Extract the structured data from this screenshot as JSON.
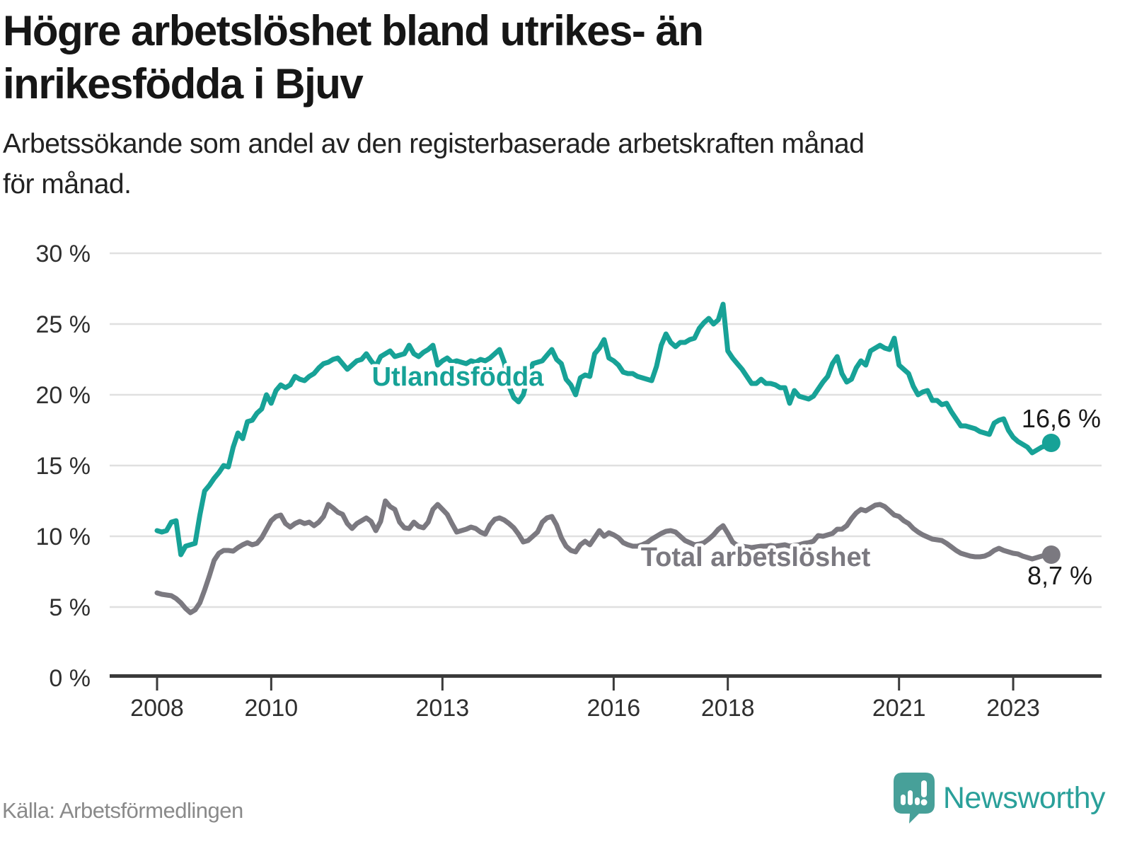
{
  "header": {
    "title_lines": [
      "Högre arbetslöshet bland utrikes- än",
      "inrikesfödda i Bjuv"
    ],
    "subtitle_lines": [
      "Arbetssökande som andel av den registerbaserade arbetskraften månad",
      "för månad."
    ]
  },
  "footer": {
    "source": "Källa: Arbetsförmedlingen",
    "brand": "Newsworthy"
  },
  "colors": {
    "foreign_born_line": "#17a297",
    "total_line": "#7b7980",
    "gridline": "#e0e0e0",
    "axis": "#3a3a3a",
    "axis_text": "#2f2f2f",
    "value_text": "#1a1a1a",
    "source_text": "#8a8a8a",
    "brand_teal": "#2aa09a",
    "logo_bubble": "#47a099"
  },
  "chart_data": {
    "type": "line",
    "title": "Högre arbetslöshet bland utrikes- än inrikesfödda i Bjuv",
    "subtitle": "Arbetssökande som andel av den registerbaserade arbetskraften månad för månad.",
    "xlabel": "",
    "ylabel": "",
    "ylim": [
      0,
      30
    ],
    "grid": "horizontal",
    "legend": "inline-labels",
    "x_unit": "month",
    "x_start": "2008-01",
    "x_end": "2023-09",
    "x_ticks": [
      {
        "year": 2008,
        "label": "2008"
      },
      {
        "year": 2010,
        "label": "2010"
      },
      {
        "year": 2013,
        "label": "2013"
      },
      {
        "year": 2016,
        "label": "2016"
      },
      {
        "year": 2018,
        "label": "2018"
      },
      {
        "year": 2021,
        "label": "2021"
      },
      {
        "year": 2023,
        "label": "2023"
      }
    ],
    "y_ticks": [
      {
        "value": 0,
        "label": "0 %"
      },
      {
        "value": 5,
        "label": "5 %"
      },
      {
        "value": 10,
        "label": "10 %"
      },
      {
        "value": 15,
        "label": "15 %"
      },
      {
        "value": 20,
        "label": "20 %"
      },
      {
        "value": 25,
        "label": "25 %"
      },
      {
        "value": 30,
        "label": "30 %"
      }
    ],
    "series": [
      {
        "name": "Utlandsfödda",
        "color": "#17a297",
        "end_label": "16,6 %",
        "end_value": 16.6,
        "values": [
          10.4,
          10.3,
          10.4,
          11.0,
          11.1,
          8.7,
          9.3,
          9.4,
          9.5,
          11.5,
          13.2,
          13.6,
          14.1,
          14.5,
          15.0,
          14.9,
          16.3,
          17.3,
          16.9,
          18.1,
          18.2,
          18.7,
          19.0,
          20.0,
          19.4,
          20.3,
          20.7,
          20.5,
          20.7,
          21.3,
          21.1,
          21.0,
          21.3,
          21.5,
          21.9,
          22.2,
          22.3,
          22.5,
          22.6,
          22.2,
          21.8,
          22.1,
          22.4,
          22.5,
          22.9,
          22.4,
          22.0,
          22.7,
          22.9,
          23.1,
          22.7,
          22.8,
          22.9,
          23.5,
          22.9,
          22.7,
          23.0,
          23.2,
          23.5,
          22.1,
          22.4,
          22.6,
          22.3,
          22.4,
          22.3,
          22.2,
          22.4,
          22.3,
          22.5,
          22.4,
          22.6,
          22.9,
          23.2,
          22.3,
          20.6,
          19.8,
          19.5,
          20.0,
          21.3,
          22.2,
          22.3,
          22.4,
          22.8,
          23.2,
          22.5,
          22.2,
          21.1,
          20.7,
          20.0,
          21.2,
          21.4,
          21.3,
          22.9,
          23.3,
          23.9,
          22.6,
          22.4,
          22.1,
          21.6,
          21.5,
          21.5,
          21.3,
          21.2,
          21.1,
          21.0,
          22.0,
          23.5,
          24.3,
          23.7,
          23.4,
          23.7,
          23.7,
          23.9,
          24.0,
          24.7,
          25.1,
          25.4,
          25.0,
          25.3,
          26.4,
          23.1,
          22.6,
          22.2,
          21.8,
          21.3,
          20.8,
          20.8,
          21.1,
          20.8,
          20.8,
          20.7,
          20.5,
          20.5,
          19.4,
          20.3,
          19.9,
          19.8,
          19.7,
          19.9,
          20.4,
          20.9,
          21.3,
          22.2,
          22.7,
          21.5,
          20.9,
          21.1,
          21.9,
          22.4,
          22.1,
          23.1,
          23.3,
          23.5,
          23.3,
          23.2,
          24.0,
          22.1,
          21.8,
          21.5,
          20.6,
          20.0,
          20.2,
          20.3,
          19.6,
          19.6,
          19.3,
          19.4,
          18.8,
          18.3,
          17.8,
          17.8,
          17.7,
          17.6,
          17.4,
          17.3,
          17.2,
          18.0,
          18.2,
          18.3,
          17.5,
          17.0,
          16.7,
          16.5,
          16.3,
          15.9,
          16.1,
          16.3,
          16.4,
          16.6
        ]
      },
      {
        "name": "Total arbetslöshet",
        "color": "#7b7980",
        "end_label": "8,7 %",
        "end_value": 8.7,
        "values": [
          6.0,
          5.9,
          5.85,
          5.8,
          5.6,
          5.3,
          4.9,
          4.6,
          4.8,
          5.3,
          6.2,
          7.2,
          8.3,
          8.8,
          9.0,
          9.0,
          8.95,
          9.2,
          9.4,
          9.55,
          9.4,
          9.5,
          9.9,
          10.5,
          11.1,
          11.4,
          11.5,
          10.9,
          10.65,
          10.9,
          11.05,
          10.9,
          11.0,
          10.75,
          11.0,
          11.4,
          12.25,
          12.0,
          11.7,
          11.55,
          10.9,
          10.55,
          10.9,
          11.1,
          11.3,
          11.05,
          10.4,
          11.05,
          12.5,
          12.1,
          11.9,
          11.0,
          10.6,
          10.55,
          11.0,
          10.7,
          10.6,
          11.0,
          11.9,
          12.25,
          11.9,
          11.55,
          10.9,
          10.3,
          10.4,
          10.5,
          10.65,
          10.55,
          10.3,
          10.15,
          10.8,
          11.2,
          11.3,
          11.15,
          10.9,
          10.6,
          10.15,
          9.6,
          9.7,
          10.0,
          10.3,
          11.0,
          11.3,
          11.4,
          10.8,
          9.9,
          9.3,
          9.0,
          8.9,
          9.4,
          9.65,
          9.4,
          9.9,
          10.4,
          10.0,
          10.25,
          10.1,
          9.9,
          9.55,
          9.4,
          9.3,
          9.3,
          9.4,
          9.55,
          9.8,
          10.0,
          10.2,
          10.35,
          10.4,
          10.3,
          10.0,
          9.7,
          9.55,
          9.4,
          9.45,
          9.55,
          9.8,
          10.1,
          10.5,
          10.75,
          10.2,
          9.6,
          9.35,
          9.3,
          9.25,
          9.2,
          9.25,
          9.3,
          9.3,
          9.35,
          9.3,
          9.35,
          9.4,
          9.3,
          9.35,
          9.4,
          9.5,
          9.55,
          9.65,
          10.05,
          10.0,
          10.1,
          10.2,
          10.5,
          10.5,
          10.75,
          11.25,
          11.65,
          11.9,
          11.8,
          12.0,
          12.2,
          12.25,
          12.1,
          11.8,
          11.5,
          11.4,
          11.1,
          10.9,
          10.55,
          10.3,
          10.1,
          9.95,
          9.8,
          9.75,
          9.7,
          9.5,
          9.25,
          9.0,
          8.8,
          8.7,
          8.6,
          8.55,
          8.55,
          8.6,
          8.75,
          9.0,
          9.15,
          9.0,
          8.9,
          8.8,
          8.75,
          8.6,
          8.5,
          8.4,
          8.5,
          8.6,
          8.7,
          8.7
        ]
      }
    ]
  }
}
